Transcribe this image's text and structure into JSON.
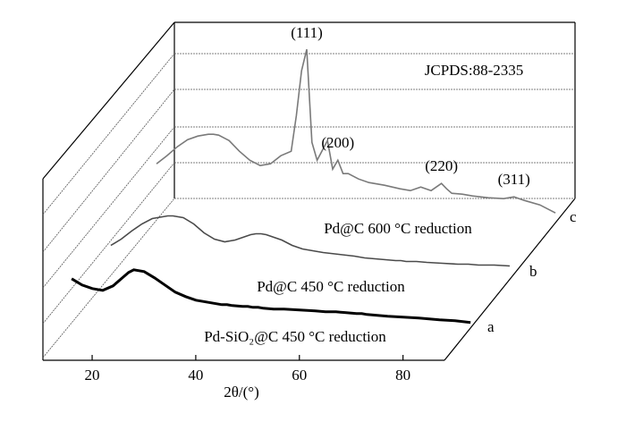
{
  "chart_data": {
    "type": "waterfall",
    "xlabel": "2θ/(°)",
    "xlim": [
      10.5,
      88
    ],
    "xticks": [
      20,
      40,
      60,
      80
    ],
    "x": [
      11,
      13,
      15,
      17,
      19,
      21,
      22,
      23,
      25,
      27,
      29,
      31,
      33,
      35,
      37,
      38,
      39,
      40,
      41,
      42,
      44,
      45,
      46,
      47,
      48,
      50,
      52,
      55,
      58,
      60,
      62,
      64,
      66,
      67,
      68,
      70,
      72,
      75,
      78,
      80,
      82,
      85,
      88
    ],
    "series": [
      {
        "name": "Pd-SiO₂@C 450 °C reduction",
        "label": "a",
        "color": "#000000",
        "values": [
          55,
          48,
          44,
          42,
          47,
          57,
          62,
          65,
          63,
          56,
          48,
          40,
          35,
          31,
          29,
          28,
          27,
          26,
          26,
          25,
          24,
          24,
          23,
          23,
          22,
          21,
          21,
          20,
          19,
          18,
          18,
          17,
          16,
          16,
          15,
          14,
          13,
          12,
          11,
          10,
          9,
          8,
          6
        ]
      },
      {
        "name": "Pd@C 450 °C reduction",
        "label": "b",
        "color": "#4a4a4a",
        "values": [
          38,
          45,
          54,
          62,
          68,
          70,
          71,
          71,
          69,
          62,
          52,
          45,
          42,
          44,
          48,
          50,
          51,
          51,
          50,
          48,
          44,
          41,
          38,
          36,
          34,
          32,
          30,
          28,
          26,
          24,
          23,
          22,
          21,
          21,
          20,
          20,
          19,
          18,
          17,
          17,
          16,
          16,
          15
        ]
      },
      {
        "name": "Pd@C 600 °C reduction",
        "label": "c",
        "color": "#7a7a7a",
        "values": [
          66,
          75,
          85,
          93,
          97,
          99,
          99,
          98,
          92,
          80,
          70,
          64,
          66,
          75,
          80,
          120,
          170,
          194,
          90,
          70,
          92,
          60,
          70,
          55,
          55,
          49,
          45,
          42,
          38,
          36,
          40,
          36,
          44,
          38,
          33,
          32,
          30,
          28,
          27,
          29,
          25,
          20,
          11
        ]
      }
    ],
    "annotations": [
      {
        "text": "(111)",
        "x": 40
      },
      {
        "text": "(200)",
        "x": 46
      },
      {
        "text": "(220)",
        "x": 66
      },
      {
        "text": "(311)",
        "x": 80
      },
      {
        "text": "JCPDS:88-2335"
      }
    ]
  }
}
